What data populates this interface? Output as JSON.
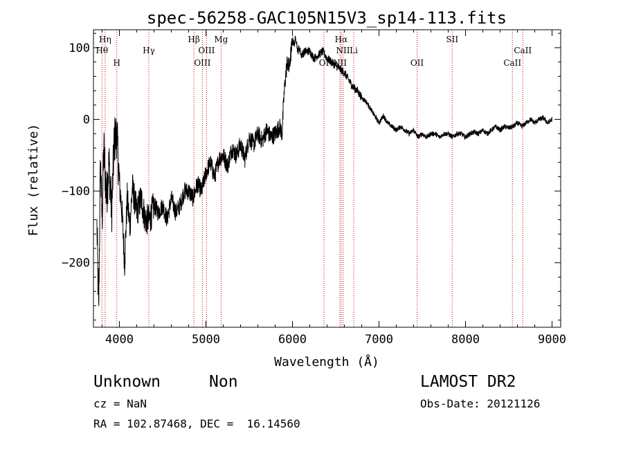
{
  "chart_data": {
    "type": "line",
    "title": "spec-56258-GAC105N15V3_sp14-113.fits",
    "xlabel": "Wavelength (Å)",
    "ylabel": "Flux (relative)",
    "xlim": [
      3700,
      9100
    ],
    "ylim": [
      -290,
      125
    ],
    "xticks": [
      4000,
      5000,
      6000,
      7000,
      8000,
      9000
    ],
    "xtick_labels": [
      "4000",
      "5000",
      "6000",
      "7000",
      "8000",
      "9000"
    ],
    "yticks": [
      100,
      0,
      -100,
      -200
    ],
    "ytick_labels": [
      "100",
      "0",
      "−100",
      "−200"
    ],
    "grid": false,
    "line_color": "#000000",
    "marker_line_color": "#cc0000",
    "series": [
      {
        "name": "",
        "x": [
          3740,
          3760,
          3780,
          3800,
          3820,
          3850,
          3880,
          3910,
          3940,
          3970,
          4000,
          4030,
          4060,
          4090,
          4120,
          4150,
          4200,
          4250,
          4300,
          4350,
          4400,
          4450,
          4500,
          4550,
          4600,
          4650,
          4700,
          4750,
          4800,
          4850,
          4900,
          4950,
          5000,
          5050,
          5100,
          5150,
          5200,
          5250,
          5300,
          5350,
          5400,
          5450,
          5500,
          5550,
          5600,
          5650,
          5700,
          5750,
          5800,
          5850,
          5880,
          5900,
          5920,
          5940,
          5960,
          5980,
          6000,
          6020,
          6040,
          6060,
          6080,
          6100,
          6150,
          6200,
          6250,
          6300,
          6350,
          6400,
          6450,
          6500,
          6550,
          6600,
          6650,
          6700,
          6750,
          6800,
          6850,
          6900,
          6950,
          7000,
          7050,
          7100,
          7150,
          7200,
          7250,
          7300,
          7350,
          7400,
          7450,
          7500,
          7550,
          7600,
          7650,
          7700,
          7750,
          7800,
          7850,
          7900,
          7950,
          8000,
          8050,
          8100,
          8150,
          8200,
          8250,
          8300,
          8350,
          8400,
          8450,
          8500,
          8550,
          8600,
          8650,
          8700,
          8750,
          8800,
          8850,
          8900,
          8950,
          9000
        ],
        "y": [
          -150,
          -270,
          -60,
          -140,
          -40,
          -110,
          -60,
          -130,
          -30,
          -20,
          -90,
          -130,
          -200,
          -110,
          -150,
          -95,
          -130,
          -110,
          -140,
          -140,
          -120,
          -130,
          -120,
          -140,
          -110,
          -130,
          -120,
          -100,
          -100,
          -110,
          -90,
          -100,
          -75,
          -60,
          -80,
          -55,
          -50,
          -65,
          -40,
          -50,
          -35,
          -55,
          -25,
          -35,
          -20,
          -30,
          -15,
          -25,
          -20,
          -10,
          -20,
          30,
          60,
          80,
          70,
          90,
          110,
          105,
          115,
          95,
          100,
          90,
          95,
          95,
          85,
          90,
          95,
          85,
          80,
          75,
          70,
          65,
          55,
          45,
          40,
          30,
          25,
          15,
          5,
          -5,
          5,
          -5,
          -10,
          -15,
          -10,
          -15,
          -20,
          -15,
          -25,
          -20,
          -25,
          -20,
          -20,
          -25,
          -20,
          -20,
          -25,
          -20,
          -20,
          -25,
          -20,
          -18,
          -20,
          -15,
          -20,
          -15,
          -10,
          -15,
          -10,
          -12,
          -10,
          -5,
          -10,
          -5,
          0,
          -5,
          0,
          2,
          -5,
          0
        ]
      }
    ],
    "line_markers": [
      {
        "wavelength": 3798,
        "label": "Hθ",
        "row": 2
      },
      {
        "wavelength": 3835,
        "label": "Hη",
        "row": 1
      },
      {
        "wavelength": 3970,
        "label": "H",
        "row": 3
      },
      {
        "wavelength": 4340,
        "label": "Hγ",
        "row": 2
      },
      {
        "wavelength": 4861,
        "label": "Hβ",
        "row": 1
      },
      {
        "wavelength": 4959,
        "label": "OIII",
        "row": 3
      },
      {
        "wavelength": 5007,
        "label": "OIII",
        "row": 2
      },
      {
        "wavelength": 5175,
        "label": "Mg",
        "row": 1
      },
      {
        "wavelength": 6364,
        "label": "OI",
        "row": 3
      },
      {
        "wavelength": 6548,
        "label": "NII",
        "row": 3
      },
      {
        "wavelength": 6563,
        "label": "Hα",
        "row": 1
      },
      {
        "wavelength": 6584,
        "label": "NII",
        "row": 2
      },
      {
        "wavelength": 6708,
        "label": "Li",
        "row": 2
      },
      {
        "wavelength": 7440,
        "label": "OII",
        "row": 3
      },
      {
        "wavelength": 7846,
        "label": "SII",
        "row": 1
      },
      {
        "wavelength": 8542,
        "label": "CaII",
        "row": 3
      },
      {
        "wavelength": 8662,
        "label": "CaII",
        "row": 2
      }
    ]
  },
  "info": {
    "class": "Unknown",
    "subclass": "Non",
    "survey": "LAMOST DR2",
    "cz": "cz = NaN",
    "obs_date": "Obs-Date: 20121126",
    "coords": "RA = 102.87468, DEC =  16.14560"
  }
}
